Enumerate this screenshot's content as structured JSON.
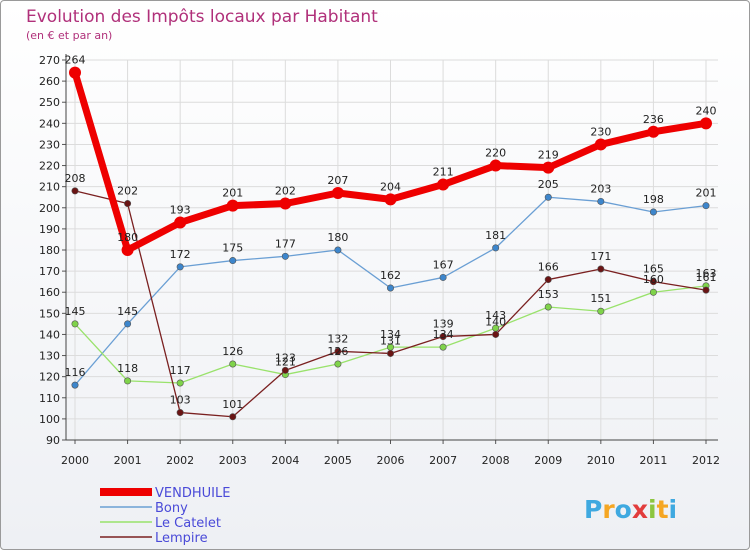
{
  "chart_data": {
    "type": "line",
    "title": "Evolution des Impôts locaux par Habitant",
    "subtitle": "(en € et par an)",
    "xlabel": "",
    "ylabel": "",
    "categories": [
      "2000",
      "2001",
      "2002",
      "2003",
      "2004",
      "2005",
      "2006",
      "2007",
      "2008",
      "2009",
      "2010",
      "2011",
      "2012"
    ],
    "ylim": [
      90,
      270
    ],
    "yticks": [
      90,
      100,
      110,
      120,
      130,
      140,
      150,
      160,
      170,
      180,
      190,
      200,
      210,
      220,
      230,
      240,
      250,
      260,
      270
    ],
    "grid": true,
    "legend_position": "bottom-left",
    "series": [
      {
        "name": "VENDHUILE",
        "color": "#ee0000",
        "marker": "#ee0000",
        "values": [
          264,
          180,
          193,
          201,
          202,
          207,
          204,
          211,
          220,
          219,
          230,
          236,
          240
        ],
        "labels": [
          "264",
          "180",
          "193",
          "201",
          "202",
          "207",
          "204",
          "211",
          "220",
          "219",
          "230",
          "236",
          "240"
        ]
      },
      {
        "name": "Bony",
        "color": "#6a9fd4",
        "marker": "#3d86cc",
        "values": [
          116,
          145,
          172,
          175,
          177,
          180,
          162,
          167,
          181,
          205,
          203,
          198,
          201
        ],
        "labels": [
          "116",
          "145",
          "172",
          "175",
          "177",
          "180",
          "162",
          "167",
          "181",
          "205",
          "203",
          "198",
          "201"
        ]
      },
      {
        "name": "Le Catelet",
        "color": "#99e26b",
        "marker": "#7fd34a",
        "values": [
          145,
          118,
          117,
          126,
          121,
          126,
          134,
          134,
          143,
          153,
          151,
          160,
          163
        ],
        "labels": [
          "145",
          "118",
          "117",
          "126",
          "121",
          "126",
          "134",
          "134",
          "143",
          "153",
          "151",
          "160",
          "163"
        ]
      },
      {
        "name": "Lempire",
        "color": "#7a2020",
        "marker": "#6a1414",
        "values": [
          208,
          202,
          103,
          101,
          123,
          132,
          131,
          139,
          140,
          166,
          171,
          165,
          161
        ],
        "labels": [
          "208",
          "202",
          "103",
          "101",
          "123",
          "132",
          "131",
          "139",
          "140",
          "166",
          "171",
          "165",
          "161"
        ]
      }
    ]
  },
  "branding": {
    "text": "Proxiti",
    "colors": [
      "#3fa9e0",
      "#f5a623",
      "#3fa9e0",
      "#e23c3c",
      "#8cc63f",
      "#f5a623",
      "#3fa9e0"
    ]
  }
}
